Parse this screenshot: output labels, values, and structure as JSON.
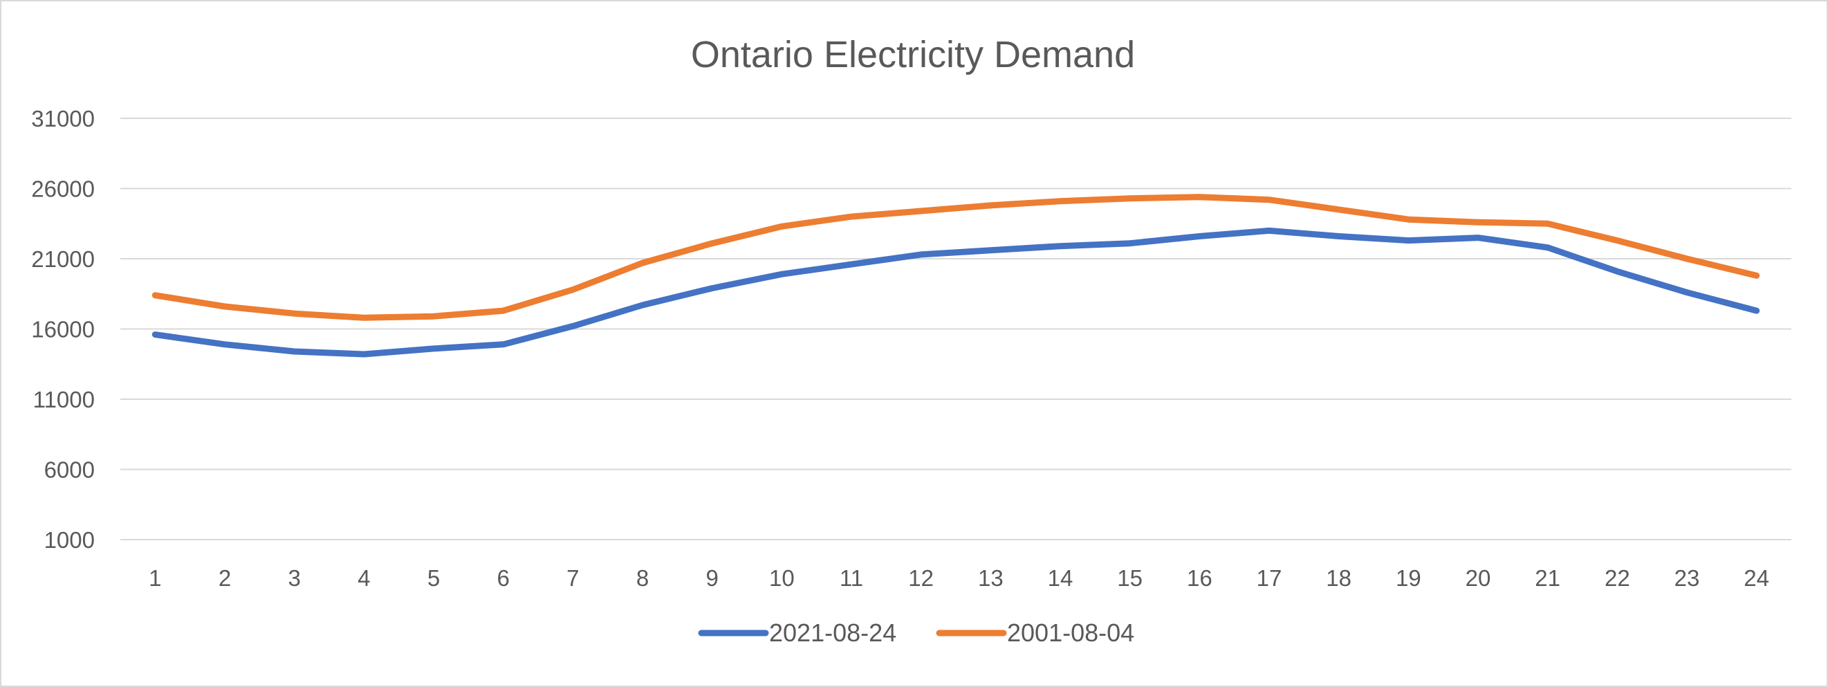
{
  "chart_data": {
    "type": "line",
    "title": "Ontario Electricity Demand",
    "xlabel": "",
    "ylabel": "",
    "x": [
      1,
      2,
      3,
      4,
      5,
      6,
      7,
      8,
      9,
      10,
      11,
      12,
      13,
      14,
      15,
      16,
      17,
      18,
      19,
      20,
      21,
      22,
      23,
      24
    ],
    "y_ticks": [
      1000,
      6000,
      11000,
      16000,
      21000,
      26000,
      31000
    ],
    "ylim": [
      1000,
      31000
    ],
    "grid": true,
    "legend_position": "bottom",
    "series": [
      {
        "name": "2021-08-24",
        "color": "#4472c4",
        "values": [
          15600,
          14900,
          14400,
          14200,
          14600,
          14900,
          16200,
          17700,
          18900,
          19900,
          20600,
          21300,
          21600,
          21900,
          22100,
          22600,
          23000,
          22600,
          22300,
          22500,
          21800,
          20100,
          18600,
          17300
        ]
      },
      {
        "name": "2001-08-04",
        "color": "#ed7d31",
        "values": [
          18400,
          17600,
          17100,
          16800,
          16900,
          17300,
          18800,
          20700,
          22100,
          23300,
          24000,
          24400,
          24800,
          25100,
          25300,
          25400,
          25200,
          24500,
          23800,
          23600,
          23500,
          22300,
          21000,
          19800
        ]
      }
    ]
  }
}
